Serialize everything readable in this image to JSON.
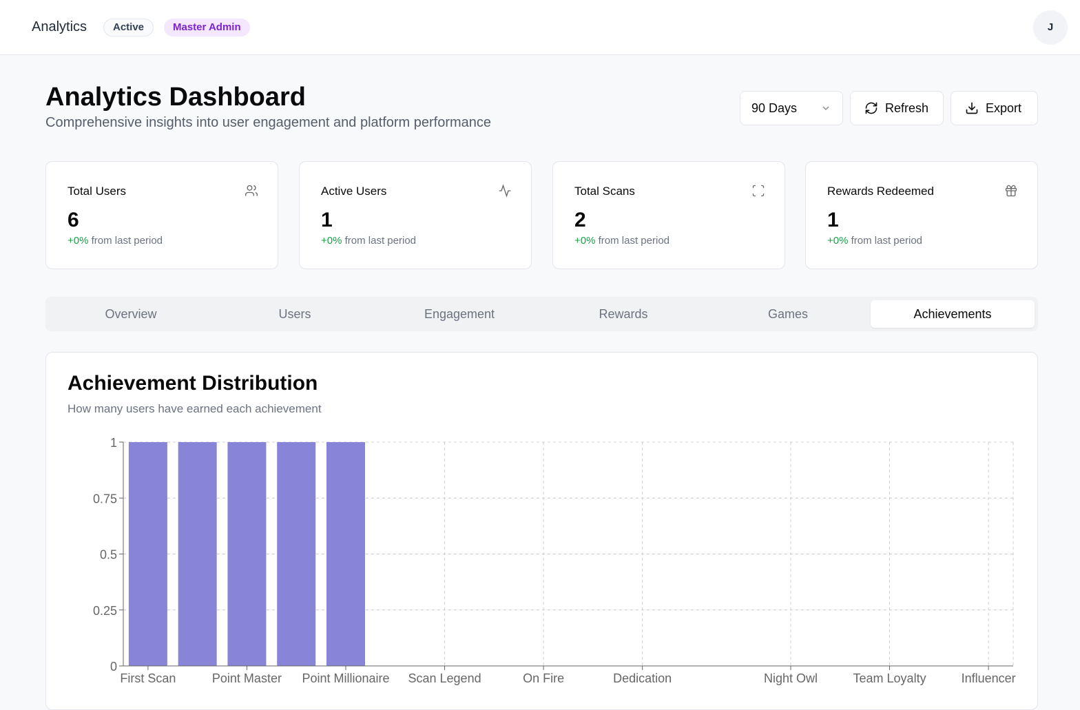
{
  "topbar": {
    "title": "Analytics",
    "status_badge": "Active",
    "role_badge": "Master Admin",
    "avatar_initial": "J"
  },
  "header": {
    "title": "Analytics Dashboard",
    "subtitle": "Comprehensive insights into user engagement and platform performance",
    "period_select": "90 Days",
    "refresh_label": "Refresh",
    "export_label": "Export"
  },
  "stats": [
    {
      "label": "Total Users",
      "value": "6",
      "change": "+0%",
      "change_suffix": "from last period",
      "icon": "users-icon"
    },
    {
      "label": "Active Users",
      "value": "1",
      "change": "+0%",
      "change_suffix": "from last period",
      "icon": "activity-icon"
    },
    {
      "label": "Total Scans",
      "value": "2",
      "change": "+0%",
      "change_suffix": "from last period",
      "icon": "scan-icon"
    },
    {
      "label": "Rewards Redeemed",
      "value": "1",
      "change": "+0%",
      "change_suffix": "from last period",
      "icon": "gift-icon"
    }
  ],
  "tabs": [
    {
      "label": "Overview"
    },
    {
      "label": "Users"
    },
    {
      "label": "Engagement"
    },
    {
      "label": "Rewards"
    },
    {
      "label": "Games"
    },
    {
      "label": "Achievements",
      "active": true
    }
  ],
  "colors": {
    "bar": "#8884d8",
    "positive": "#16a34a",
    "role_badge": "#7e22ce"
  },
  "chart_card": {
    "title": "Achievement Distribution",
    "subtitle": "How many users have earned each achievement"
  },
  "chart_data": {
    "type": "bar",
    "categories": [
      "First Scan",
      "",
      "Point Master",
      "",
      "Point Millionaire",
      "",
      "Scan Legend",
      "",
      "On Fire",
      "",
      "Dedication",
      "",
      "",
      "Night Owl",
      "",
      "Team Loyalty",
      "",
      "Influencer"
    ],
    "values": [
      1,
      1,
      1,
      1,
      1,
      0,
      0,
      0,
      0,
      0,
      0,
      0,
      0,
      0,
      0,
      0,
      0,
      0
    ],
    "yticks": [
      "0",
      "0.25",
      "0.5",
      "0.75",
      "1"
    ],
    "ylim": [
      0,
      1
    ],
    "grid": true
  }
}
